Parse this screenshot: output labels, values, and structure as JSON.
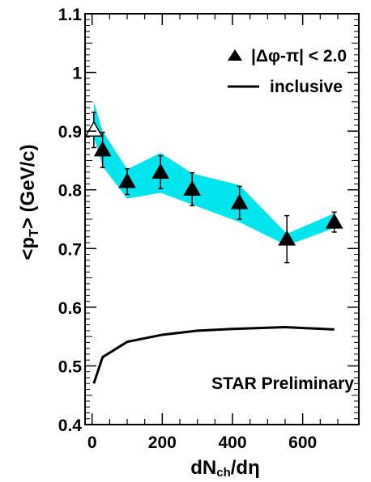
{
  "chart_data": {
    "type": "scatter",
    "title": "",
    "xlabel": {
      "prefix": "dN",
      "sub": "ch",
      "suffix": "/dη"
    },
    "ylabel": {
      "prefix": "<p",
      "sub": "T",
      "suffix": ">  (GeV/c)"
    },
    "xlim": [
      -20,
      760
    ],
    "ylim": [
      0.4,
      1.1
    ],
    "x_ticks": [
      0,
      200,
      400,
      600
    ],
    "y_ticks": [
      0.4,
      0.5,
      0.6,
      0.7,
      0.8,
      0.9,
      1.0,
      1.1
    ],
    "x_tick_labels": [
      "0",
      "200",
      "400",
      "600"
    ],
    "y_tick_labels": [
      "0.4",
      "0.5",
      "0.6",
      "0.7",
      "0.8",
      "0.9",
      "1",
      "1.1"
    ],
    "grid": false,
    "legend_position": "top-right",
    "legend": [
      {
        "label": "|Δφ-π| < 2.0",
        "marker": "filled-triangle"
      },
      {
        "label": "inclusive",
        "marker": "line"
      }
    ],
    "annotation": "STAR Preliminary",
    "series": [
      {
        "name": "|Δφ-π| < 2.0",
        "marker": "triangle",
        "color": "#000000",
        "points": [
          {
            "x": 5,
            "y": 0.902,
            "err": 0.03,
            "open": true
          },
          {
            "x": 30,
            "y": 0.868,
            "err": 0.03
          },
          {
            "x": 100,
            "y": 0.814,
            "err": 0.022
          },
          {
            "x": 195,
            "y": 0.83,
            "err": 0.028
          },
          {
            "x": 285,
            "y": 0.801,
            "err": 0.028
          },
          {
            "x": 420,
            "y": 0.778,
            "err": 0.028
          },
          {
            "x": 555,
            "y": 0.716,
            "err": 0.04
          },
          {
            "x": 690,
            "y": 0.745,
            "err": 0.017
          }
        ]
      },
      {
        "name": "inclusive",
        "type": "line",
        "color": "#000000",
        "x": [
          5,
          30,
          100,
          200,
          300,
          400,
          550,
          690
        ],
        "y": [
          0.47,
          0.515,
          0.541,
          0.553,
          0.56,
          0.563,
          0.566,
          0.562
        ]
      }
    ],
    "systematic_band": {
      "color": "#00e5ee",
      "x": [
        5,
        30,
        100,
        195,
        285,
        420,
        555,
        690
      ],
      "upper": [
        0.95,
        0.9,
        0.835,
        0.863,
        0.828,
        0.808,
        0.725,
        0.76
      ],
      "lower": [
        0.89,
        0.84,
        0.785,
        0.795,
        0.775,
        0.745,
        0.705,
        0.735
      ]
    }
  }
}
